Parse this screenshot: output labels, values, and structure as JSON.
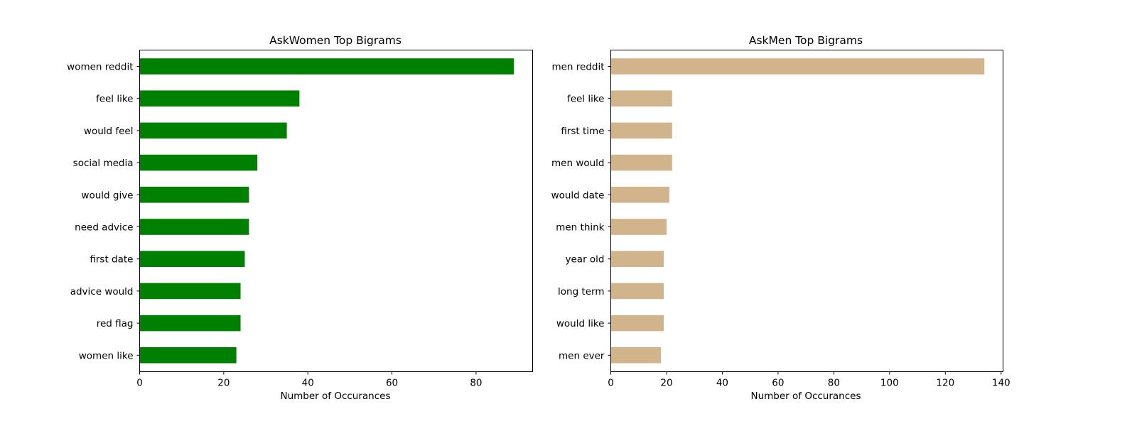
{
  "chart_data": [
    {
      "type": "bar",
      "orientation": "horizontal",
      "title": "AskWomen Top Bigrams",
      "xlabel": "Number of Occurances",
      "ylabel": "",
      "xlim": [
        0,
        93.45
      ],
      "xticks": [
        0,
        20,
        40,
        60,
        80
      ],
      "color": "#008000",
      "grid": false,
      "categories": [
        "women reddit",
        "feel like",
        "would feel",
        "social media",
        "would give",
        "need advice",
        "first date",
        "advice would",
        "red flag",
        "women like"
      ],
      "values": [
        89,
        38,
        35,
        28,
        26,
        26,
        25,
        24,
        24,
        23
      ]
    },
    {
      "type": "bar",
      "orientation": "horizontal",
      "title": "AskMen Top Bigrams",
      "xlabel": "Number of Occurances",
      "ylabel": "",
      "xlim": [
        0,
        140.7
      ],
      "xticks": [
        0,
        20,
        40,
        60,
        80,
        100,
        120,
        140
      ],
      "color": "#D2B48C",
      "grid": false,
      "categories": [
        "men reddit",
        "feel like",
        "first time",
        "men would",
        "would date",
        "men think",
        "year old",
        "long term",
        "would like",
        "men ever"
      ],
      "values": [
        134,
        22,
        22,
        22,
        21,
        20,
        19,
        19,
        19,
        18
      ]
    }
  ]
}
